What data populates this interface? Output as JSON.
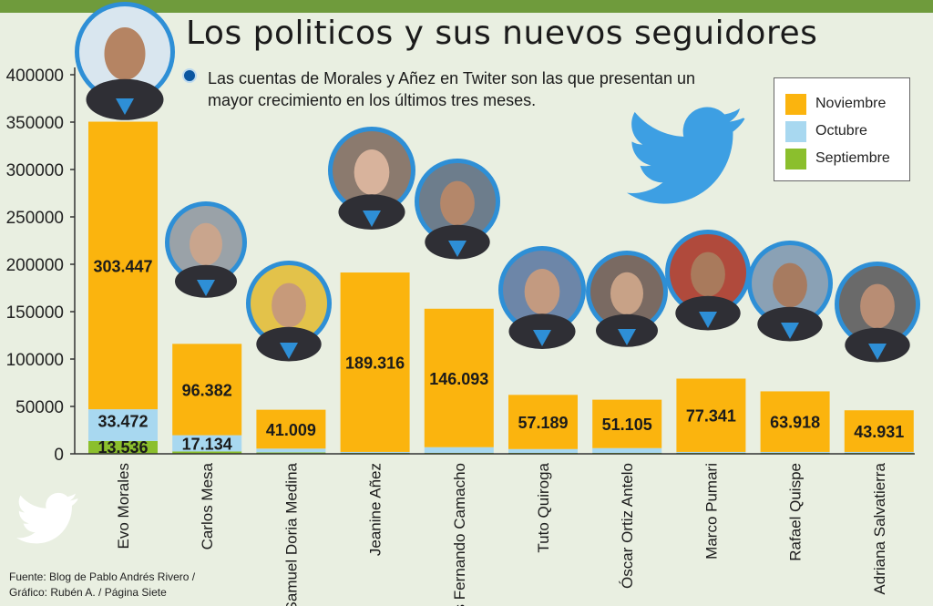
{
  "title": "Los politicos y sus nuevos seguidores",
  "subtitle": "Las cuentas de Morales y Añez en Twiter son las que presentan un mayor crecimiento en los últimos tres meses.",
  "source_line1": "Fuente: Blog de Pablo Andrés Rivero /",
  "source_line2": "Gráfico: Rubén A. / Página Siete",
  "legend": [
    {
      "label": "Noviembre",
      "color": "#fbb40e"
    },
    {
      "label": "Octubre",
      "color": "#a8d8f0"
    },
    {
      "label": "Septiembre",
      "color": "#8bbf2d"
    }
  ],
  "colors": {
    "accent_bar": "#6f9b3c",
    "avatar_ring": "#2e8fd6",
    "twitter": "#3d9fe3"
  },
  "icons": [
    "twitter-bird-icon"
  ],
  "chart_data": {
    "type": "bar",
    "stacked": true,
    "categories": [
      "Evo Morales",
      "Carlos Mesa",
      "Samuel Doria Medina",
      "Jeanine Añez",
      "Luis Fernando Camacho",
      "Tuto Quiroga",
      "Óscar Ortiz Antelo",
      "Marco Pumari",
      "Rafael Quispe",
      "Adriana Salvatierra"
    ],
    "series": [
      {
        "name": "Septiembre",
        "values": [
          13536,
          2500,
          1500,
          1000,
          1000,
          1000,
          1000,
          1000,
          1000,
          1000
        ]
      },
      {
        "name": "Octubre",
        "values": [
          33472,
          17134,
          4000,
          1000,
          6000,
          4000,
          5000,
          1000,
          1000,
          1000
        ]
      },
      {
        "name": "Noviembre",
        "values": [
          303447,
          96382,
          41009,
          189316,
          146093,
          57189,
          51105,
          77341,
          63918,
          43931
        ]
      }
    ],
    "data_labels": {
      "Septiembre": [
        "13.536",
        "",
        "",
        "",
        "",
        "",
        "",
        "",
        "",
        ""
      ],
      "Octubre": [
        "33.472",
        "17.134",
        "",
        "",
        "",
        "",
        "",
        "",
        "",
        ""
      ],
      "Noviembre": [
        "303.447",
        "96.382",
        "41.009",
        "189.316",
        "146.093",
        "57.189",
        "51.105",
        "77.341",
        "63.918",
        "43.931"
      ]
    },
    "y_ticks": [
      "0",
      "50000",
      "100000",
      "150000",
      "200000",
      "250000",
      "300000",
      "350000",
      "400000"
    ],
    "ylim": [
      0,
      400000
    ],
    "grid": false,
    "legend_position": "top-right"
  }
}
